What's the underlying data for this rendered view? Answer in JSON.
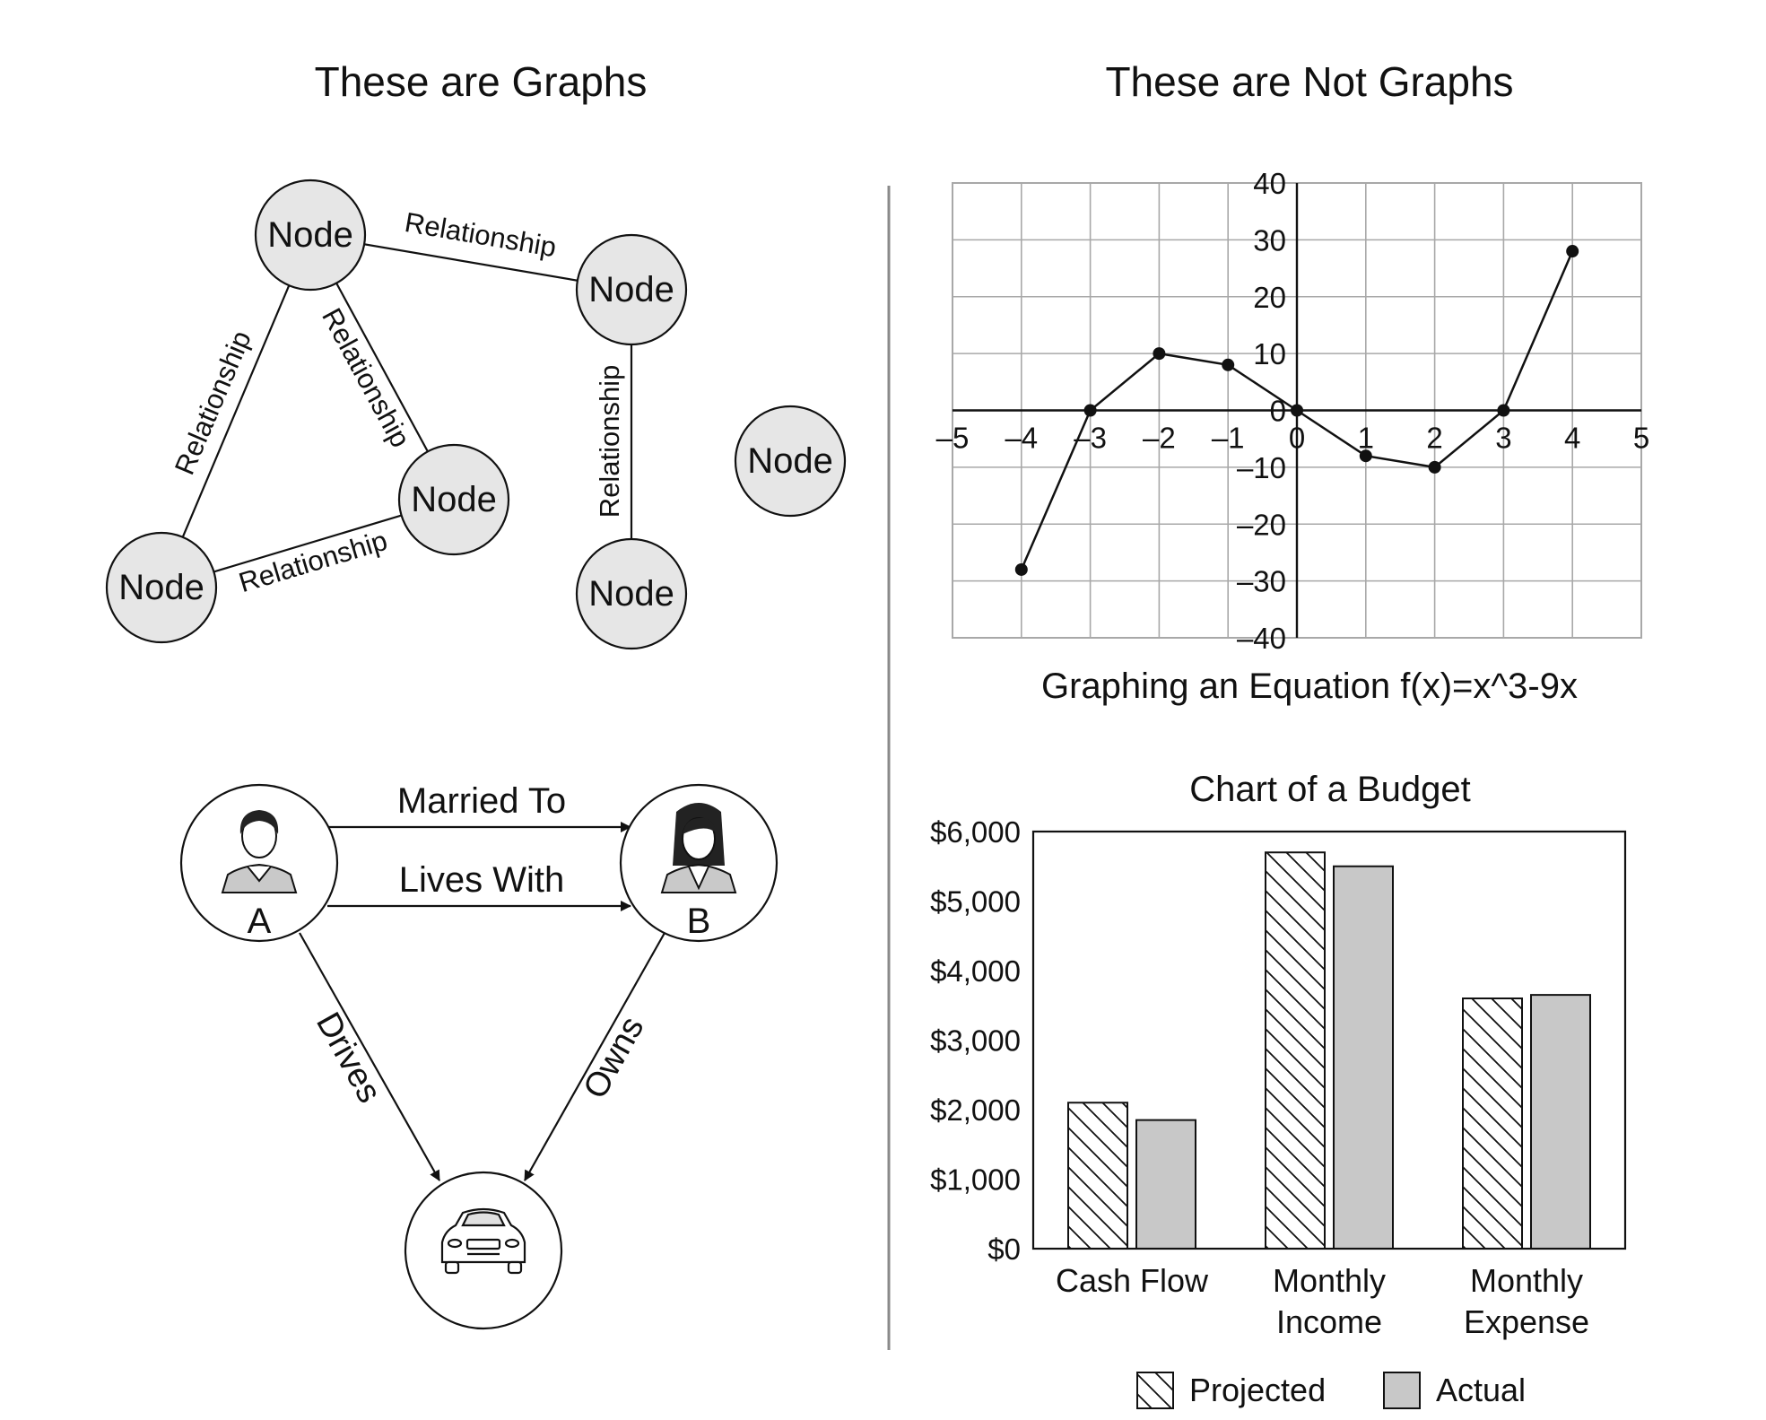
{
  "headings": {
    "left": "These are Graphs",
    "right": "These are Not Graphs"
  },
  "network": {
    "node_label": "Node",
    "relationship_label": "Relationship",
    "fill_color": "#e6e6e6"
  },
  "social": {
    "person_a": "A",
    "person_b": "B",
    "edge_married": "Married To",
    "edge_lives": "Lives With",
    "edge_drives": "Drives",
    "edge_owns": "Owns",
    "icon_a": "man-avatar-icon",
    "icon_b": "woman-avatar-icon",
    "icon_car": "car-icon"
  },
  "chart_data": [
    {
      "type": "line",
      "title": "Graphing an Equation f(x)=x^3-9x",
      "x": [
        -4,
        -3,
        -2,
        -1,
        0,
        1,
        2,
        3,
        4
      ],
      "y": [
        -28,
        0,
        10,
        8,
        0,
        -8,
        -10,
        0,
        28
      ],
      "xlim": [
        -5,
        5
      ],
      "ylim": [
        -40,
        40
      ],
      "x_ticks": [
        "–5",
        "–4",
        "–3",
        "–2",
        "–1",
        "0",
        "1",
        "2",
        "3",
        "4",
        "5"
      ],
      "y_ticks": [
        "40",
        "30",
        "20",
        "10",
        "0",
        "–10",
        "–20",
        "–30",
        "–40"
      ],
      "grid": true
    },
    {
      "type": "bar",
      "title": "Chart of a Budget",
      "categories": [
        [
          "Cash Flow"
        ],
        [
          "Monthly",
          "Income"
        ],
        [
          "Monthly",
          "Expense"
        ]
      ],
      "series": [
        {
          "name": "Projected",
          "values": [
            2100,
            5700,
            3600
          ],
          "pattern": "hatched"
        },
        {
          "name": "Actual",
          "values": [
            1850,
            5500,
            3650
          ],
          "color": "#c8c8c8"
        }
      ],
      "ylim": [
        0,
        6000
      ],
      "y_ticks": [
        "$6,000",
        "$5,000",
        "$4,000",
        "$3,000",
        "$2,000",
        "$1,000",
        "$0"
      ],
      "legend": "bottom"
    }
  ]
}
